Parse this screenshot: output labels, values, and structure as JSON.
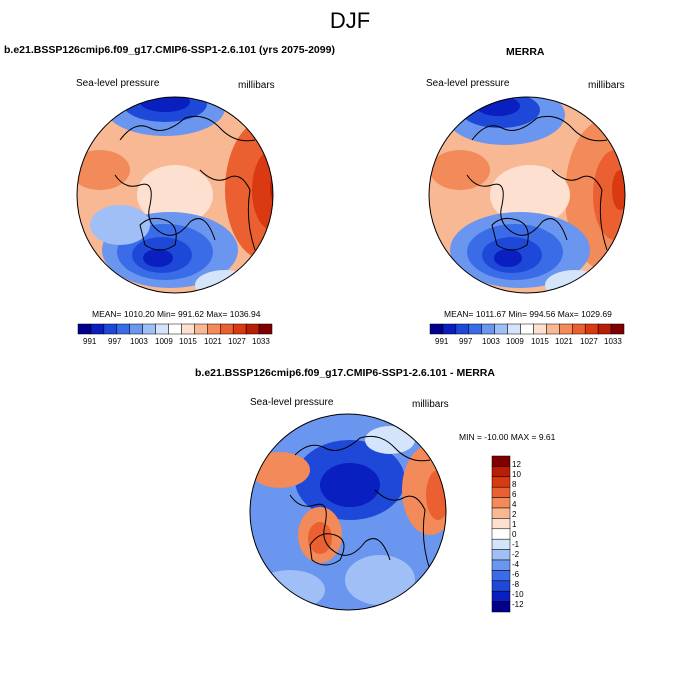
{
  "page_title": "DJF",
  "colors": {
    "palette": [
      "#00008b",
      "#0a1fbf",
      "#1e49d8",
      "#3a6ce8",
      "#6b96ef",
      "#a0bff6",
      "#d4e4fb",
      "#ffffff",
      "#fde0d0",
      "#f8b894",
      "#f28a5a",
      "#ea6031",
      "#d93a12",
      "#b81e05",
      "#800000"
    ],
    "diff_palette": [
      "#00008b",
      "#0a1fbf",
      "#1e49d8",
      "#3a6ce8",
      "#6b96ef",
      "#a0bff6",
      "#d4e4fb",
      "#ffffff",
      "#fde0d0",
      "#f8b894",
      "#f28a5a",
      "#ea6031",
      "#d93a12",
      "#b81e05",
      "#800000"
    ]
  },
  "panels": {
    "left": {
      "title": "b.e21.BSSP126cmip6.f09_g17.CMIP6-SSP1-2.6.101 (yrs 2075-2099)",
      "variable": "Sea-level pressure",
      "units": "millibars",
      "stats": "MEAN= 1010.20  Min= 991.62  Max= 1036.94"
    },
    "right": {
      "title": "MERRA",
      "variable": "Sea-level pressure",
      "units": "millibars",
      "stats": "MEAN= 1011.67  Min= 994.56  Max= 1029.69"
    },
    "diff": {
      "title": "b.e21.BSSP126cmip6.f09_g17.CMIP6-SSP1-2.6.101 - MERRA",
      "variable": "Sea-level pressure",
      "units": "millibars",
      "stats": "MIN = -10.00 MAX =   9.61"
    }
  },
  "colorbar_labels": [
    "991",
    "997",
    "1003",
    "1009",
    "1015",
    "1021",
    "1027",
    "1033"
  ],
  "diff_colorbar_labels": [
    "12",
    "10",
    "8",
    "6",
    "4",
    "2",
    "1",
    "0",
    "-1",
    "-2",
    "-4",
    "-6",
    "-8",
    "-10",
    "-12"
  ]
}
